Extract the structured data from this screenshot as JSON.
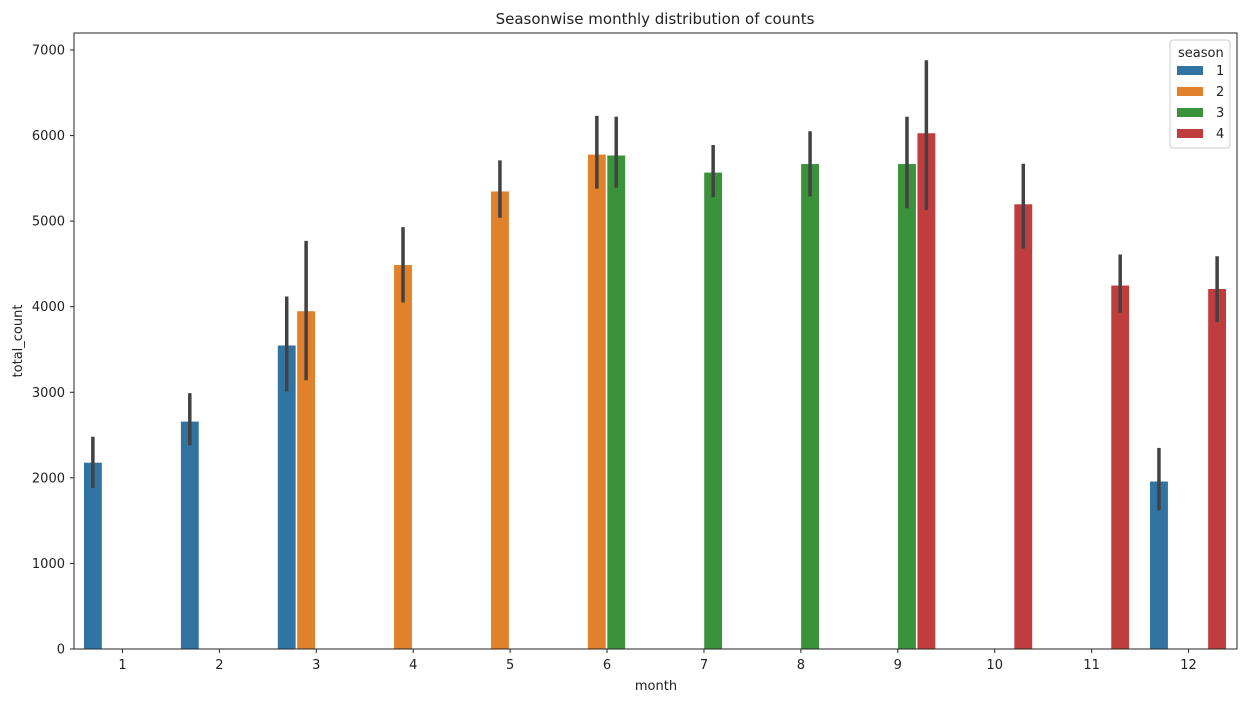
{
  "chart_data": {
    "type": "bar",
    "title": "Seasonwise monthly distribution of counts",
    "xlabel": "month",
    "ylabel": "total_count",
    "ylim": [
      0,
      7000
    ],
    "yticks": [
      0,
      1000,
      2000,
      3000,
      4000,
      5000,
      6000,
      7000
    ],
    "categories": [
      "1",
      "2",
      "3",
      "4",
      "5",
      "6",
      "7",
      "8",
      "9",
      "10",
      "11",
      "12"
    ],
    "legend": {
      "title": "season",
      "placement": "top-right"
    },
    "grid": false,
    "series": [
      {
        "name": "1",
        "color": "#3274a1",
        "values": [
          2180,
          2660,
          3550,
          null,
          null,
          null,
          null,
          null,
          null,
          null,
          null,
          1960
        ],
        "ci": [
          [
            1880,
            2480
          ],
          [
            2380,
            2990
          ],
          [
            3010,
            4120
          ],
          null,
          null,
          null,
          null,
          null,
          null,
          null,
          null,
          [
            1620,
            2350
          ]
        ]
      },
      {
        "name": "2",
        "color": "#e1812c",
        "values": [
          null,
          null,
          3950,
          4490,
          5350,
          5780,
          null,
          null,
          null,
          null,
          null,
          null
        ],
        "ci": [
          null,
          null,
          [
            3140,
            4770
          ],
          [
            4050,
            4930
          ],
          [
            5040,
            5710
          ],
          [
            5380,
            6230
          ],
          null,
          null,
          null,
          null,
          null,
          null
        ]
      },
      {
        "name": "3",
        "color": "#3a923a",
        "values": [
          null,
          null,
          null,
          null,
          null,
          5770,
          5570,
          5670,
          5670,
          null,
          null,
          null
        ],
        "ci": [
          null,
          null,
          null,
          null,
          null,
          [
            5390,
            6220
          ],
          [
            5280,
            5890
          ],
          [
            5290,
            6050
          ],
          [
            5150,
            6220
          ],
          null,
          null,
          null
        ]
      },
      {
        "name": "4",
        "color": "#c03d3e",
        "values": [
          null,
          null,
          null,
          null,
          null,
          null,
          null,
          null,
          6030,
          5200,
          4250,
          4210
        ],
        "ci": [
          null,
          null,
          null,
          null,
          null,
          null,
          null,
          null,
          [
            5130,
            6880
          ],
          [
            4680,
            5670
          ],
          [
            3930,
            4610
          ],
          [
            3820,
            4590
          ]
        ]
      }
    ]
  }
}
